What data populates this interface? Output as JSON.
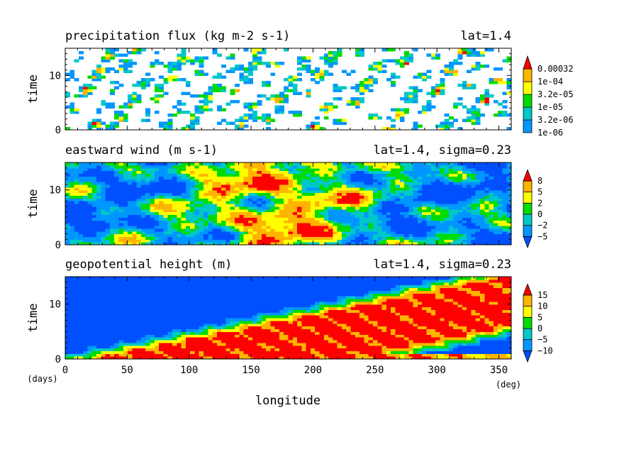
{
  "chart_data": [
    {
      "type": "heatmap",
      "title": "precipitation flux (kg m-2 s-1)",
      "subtitle": "lat=1.4",
      "ylabel": "time",
      "xlim": [
        0,
        360
      ],
      "ylim": [
        0,
        15
      ],
      "xticks": [
        0,
        50,
        100,
        150,
        200,
        250,
        300,
        350
      ],
      "yticks": [
        0,
        10
      ],
      "colorbar": {
        "labels": [
          "0.00032",
          "1e-04",
          "3.2e-05",
          "1e-05",
          "3.2e-06",
          "1e-06"
        ],
        "colors": [
          "#0096ff",
          "#00c8c8",
          "#00dc00",
          "#ffff00",
          "#ffb400",
          "#ff0000"
        ],
        "extend": "max"
      },
      "pattern": "sparse scattered patches; weak eastward-propagating streaks; mostly white (below 1e-06)"
    },
    {
      "type": "heatmap",
      "title": "eastward wind (m s-1)",
      "subtitle": "lat=1.4, sigma=0.23",
      "ylabel": "time",
      "xlim": [
        0,
        360
      ],
      "ylim": [
        0,
        15
      ],
      "xticks": [
        0,
        50,
        100,
        150,
        200,
        250,
        300,
        350
      ],
      "yticks": [
        0,
        10
      ],
      "colorbar": {
        "labels": [
          "8",
          "5",
          "2",
          "0",
          "−2",
          "−5"
        ],
        "colors": [
          "#0050ff",
          "#0096ff",
          "#00c8c8",
          "#00dc00",
          "#ffff00",
          "#ffb400",
          "#ff0000"
        ],
        "extend": "both"
      },
      "pattern": "broad westerly (red) region from ~50 to 250 deg, easterly (blue) elsewhere"
    },
    {
      "type": "heatmap",
      "title": "geopotential height (m)",
      "subtitle": "lat=1.4, sigma=0.23",
      "ylabel": "time",
      "xlabel": "longitude",
      "xunit": "(deg)",
      "yunit": "(days)",
      "xlim": [
        0,
        360
      ],
      "ylim": [
        0,
        15
      ],
      "xticks": [
        0,
        50,
        100,
        150,
        200,
        250,
        300,
        350
      ],
      "yticks": [
        0,
        10
      ],
      "colorbar": {
        "labels": [
          "15",
          "10",
          "5",
          "0",
          "−5",
          "−10"
        ],
        "colors": [
          "#0050ff",
          "#0096ff",
          "#00c8c8",
          "#00dc00",
          "#ffff00",
          "#ffb400",
          "#ff0000"
        ],
        "extend": "both"
      },
      "pattern": "diagonal positive (red) band propagating eastward from ~40 deg at day 0 to ~360 deg at day 14"
    }
  ]
}
